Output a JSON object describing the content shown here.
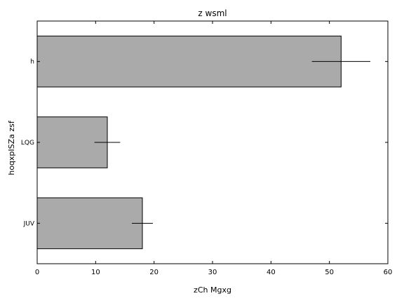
{
  "chart_data": {
    "type": "bar",
    "orientation": "horizontal",
    "title": "z wsml",
    "xlabel": "zCh Mgxg",
    "ylabel": "hoqxpISZa zsf",
    "categories": [
      "h",
      "LQG",
      "JUV"
    ],
    "values": [
      52,
      12,
      18
    ],
    "errors": [
      5,
      2.2,
      1.8
    ],
    "xlim": [
      0,
      60
    ],
    "xticks": [
      0,
      10,
      20,
      30,
      40,
      50,
      60
    ],
    "grid": false,
    "legend": "none",
    "colors": {
      "bar": "#aaaaaa",
      "edge": "#000000",
      "error": "#000000"
    }
  }
}
